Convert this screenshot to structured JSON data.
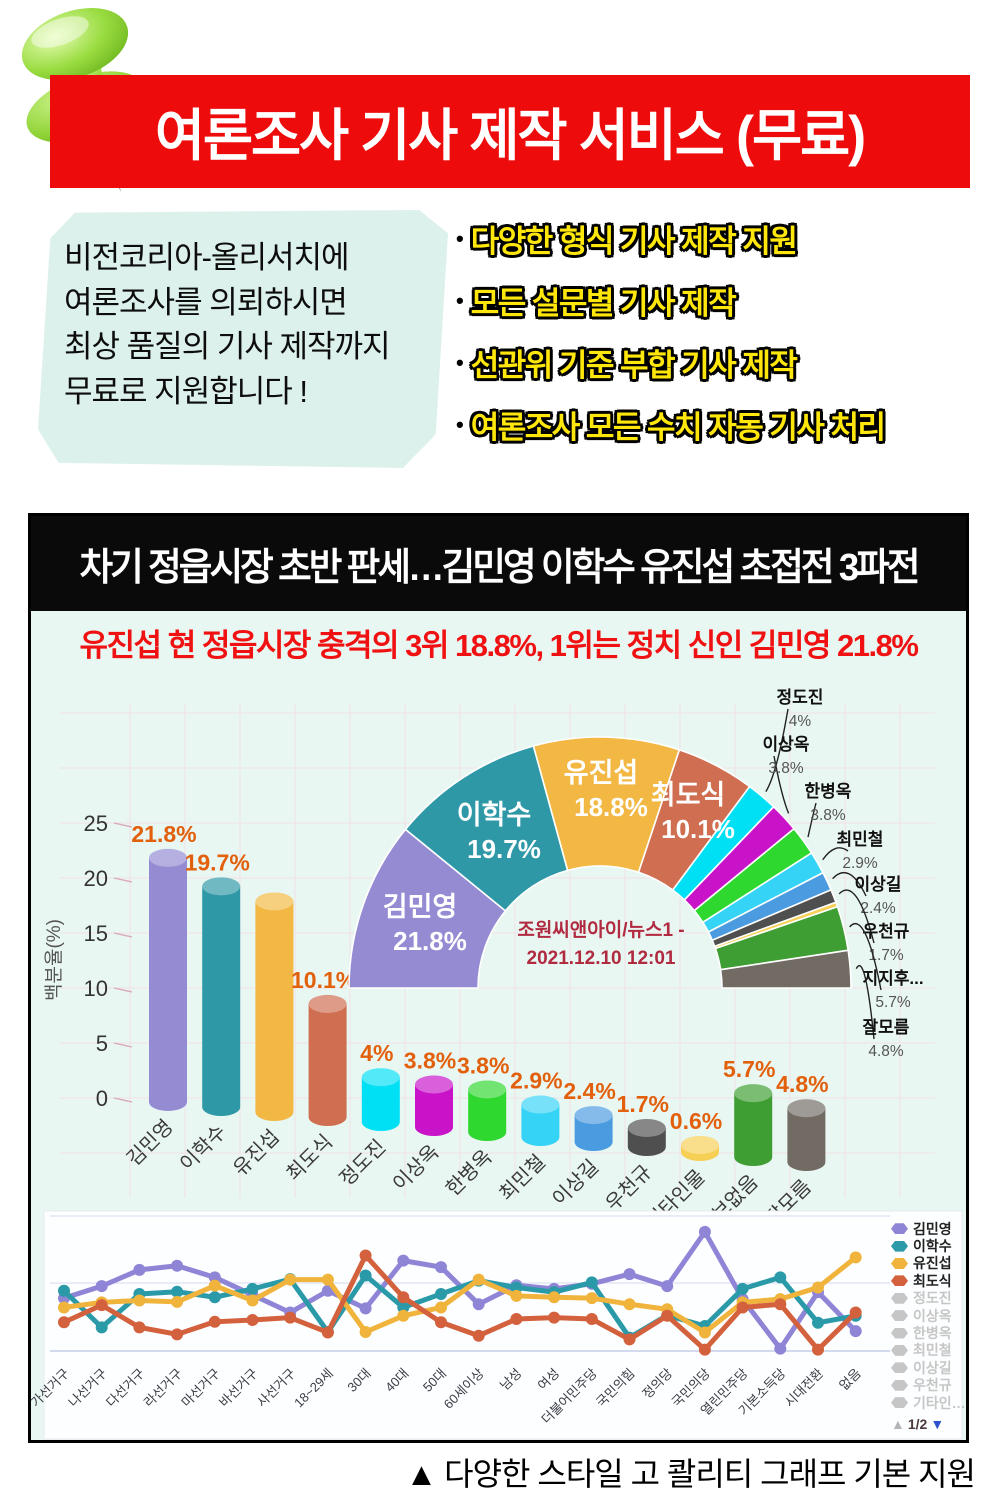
{
  "header": {
    "title": "여론조사 기사 제작 서비스 (무료)"
  },
  "intro": {
    "bubble_lines": [
      "비전코리아-올리서치에",
      "여론조사를 의뢰하시면",
      "최상 품질의 기사 제작까지",
      "무료로 지원합니다 !"
    ],
    "bullets": [
      "다양한 형식 기사 제작 지원",
      "모든 설문별 기사 제작",
      "선관위 기준 부합 기사 제작",
      "여론조사 모든 수치 자동 기사 처리"
    ]
  },
  "article": {
    "headline": "차기 정읍시장 초반 판세…김민영 이학수 유진섭 초접전 3파전",
    "subheadline": "유진섭 현 정읍시장 충격의 3위 18.8%, 1위는 정치 신인 김민영 21.8%"
  },
  "caption": "▲ 다양한 스타일  고 콸리티 그래프 기본 지원",
  "colors": {
    "banner_red": "#ee0b0b",
    "bullet_yellow": "#ffe70c",
    "panel_mint": "#e9f7f2",
    "headline_red": "#f01212",
    "value_label_orange": "#e2600c",
    "source_crimson": "#b02a40",
    "grid_pink": "#f1dfe7",
    "legend_inactive": "#c6c6c6"
  },
  "chart_data": [
    {
      "type": "pie",
      "variant": "half-donut",
      "categories": [
        "김민영",
        "이학수",
        "유진섭",
        "최도식",
        "정도진",
        "이상옥",
        "한병옥",
        "최민철",
        "이상길",
        "우천규",
        "기타인물",
        "지지후보없음",
        "잘모름"
      ],
      "values": [
        21.8,
        19.7,
        18.8,
        10.1,
        4,
        3.8,
        3.8,
        2.9,
        2.4,
        1.7,
        0.6,
        5.7,
        4.8
      ],
      "colors": [
        "#948bd3",
        "#2e98a6",
        "#f2b843",
        "#cf6e50",
        "#00e0f5",
        "#c913c9",
        "#2ed82e",
        "#35d3f5",
        "#4b9be0",
        "#4f4f4f",
        "#f6cf55",
        "#3f9e33",
        "#716b63"
      ],
      "inside_labels": [
        {
          "name": "김민영",
          "value": "21.8%"
        },
        {
          "name": "이학수",
          "value": "19.7%"
        },
        {
          "name": "유진섭",
          "value": "18.8%"
        },
        {
          "name": "최도식",
          "value": "10.1%"
        }
      ],
      "callout_labels": [
        {
          "name": "정도진",
          "value": "4%"
        },
        {
          "name": "이상옥",
          "value": "3.8%"
        },
        {
          "name": "한병옥",
          "value": "3.8%"
        },
        {
          "name": "최민철",
          "value": "2.9%"
        },
        {
          "name": "이상길",
          "value": "2.4%"
        },
        {
          "name": "우천규",
          "value": "1.7%"
        },
        {
          "name": "지지후...",
          "value": "5.7%"
        },
        {
          "name": "잘모름",
          "value": "4.8%"
        }
      ],
      "center_text": [
        "조원씨앤아이/뉴스1 -",
        "2021.12.10 12:01"
      ]
    },
    {
      "type": "bar",
      "variant": "3d-cylinder",
      "categories": [
        "김민영",
        "이학수",
        "유진섭",
        "최도식",
        "정도진",
        "이상옥",
        "한병옥",
        "최민철",
        "이상길",
        "우천규",
        "기타인물",
        "지지후보없음",
        "잘모름"
      ],
      "values": [
        21.8,
        19.7,
        18.8,
        10.1,
        4,
        3.8,
        3.8,
        2.9,
        2.4,
        1.7,
        0.6,
        5.7,
        4.8
      ],
      "value_labels": [
        "21.8%",
        "19.7%",
        "",
        "10.1%",
        "4%",
        "3.8%",
        "3.8%",
        "2.9%",
        "2.4%",
        "1.7%",
        "0.6%",
        "5.7%",
        "4.8%"
      ],
      "colors": [
        "#948bd3",
        "#2e98a6",
        "#f2b843",
        "#cf6e50",
        "#00e0f5",
        "#c913c9",
        "#2ed82e",
        "#35d3f5",
        "#4b9be0",
        "#4f4f4f",
        "#f6cf55",
        "#3f9e33",
        "#716b63"
      ],
      "ylabel": "백분율(%)",
      "yticks": [
        0,
        5,
        10,
        15,
        20,
        25
      ],
      "ylim": [
        0,
        25
      ]
    },
    {
      "type": "line",
      "categories": [
        "가선거구",
        "나선거구",
        "다선거구",
        "라선거구",
        "마선거구",
        "바선거구",
        "사선거구",
        "18~29세",
        "30대",
        "40대",
        "50대",
        "60세이상",
        "남성",
        "여성",
        "더불어민주당",
        "국민의힘",
        "정의당",
        "국민의당",
        "열린민주당",
        "기본소득당",
        "시대전환",
        "없음"
      ],
      "series": [
        {
          "name": "김민영",
          "color": "#8f85d6",
          "values": [
            11.4,
            14.0,
            17.5,
            18.4,
            15.9,
            12.1,
            8.3,
            13.0,
            9.2,
            19.5,
            18.1,
            10.1,
            14.2,
            13.4,
            14.5,
            16.6,
            14.0,
            25.7,
            11.2,
            0.5,
            12.7,
            4.3
          ]
        },
        {
          "name": "이학수",
          "color": "#2b9aa8",
          "values": [
            13.0,
            5.1,
            12.3,
            12.8,
            11.6,
            13.4,
            15.5,
            4.1,
            16.3,
            9.4,
            12.3,
            15.2,
            13.7,
            12.7,
            14.8,
            2.9,
            7.7,
            5.4,
            13.4,
            15.9,
            6.1,
            7.6
          ]
        },
        {
          "name": "유진섭",
          "color": "#f0b43c",
          "values": [
            9.4,
            10.5,
            10.9,
            10.6,
            14.1,
            10.9,
            15.4,
            15.4,
            4.1,
            7.6,
            9.4,
            15.4,
            11.9,
            11.6,
            11.4,
            10.1,
            9.0,
            4.0,
            10.5,
            11.2,
            13.7,
            20.2
          ]
        },
        {
          "name": "최도식",
          "color": "#d4613d",
          "values": [
            6.2,
            9.9,
            5.1,
            3.6,
            6.3,
            6.7,
            7.2,
            4.0,
            20.6,
            11.6,
            6.2,
            3.3,
            6.9,
            7.2,
            6.9,
            2.5,
            7.6,
            0.3,
            9.4,
            10.1,
            0.3,
            8.3
          ]
        }
      ],
      "ylim": [
        0,
        30
      ],
      "grid": true,
      "legend": {
        "position": "right",
        "active": [
          "김민영",
          "이학수",
          "유진섭",
          "최도식"
        ],
        "inactive": [
          "정도진",
          "이상옥",
          "한병옥",
          "최민철",
          "이상길",
          "우천규",
          "기타인…"
        ],
        "pagination": "1/2"
      }
    }
  ]
}
